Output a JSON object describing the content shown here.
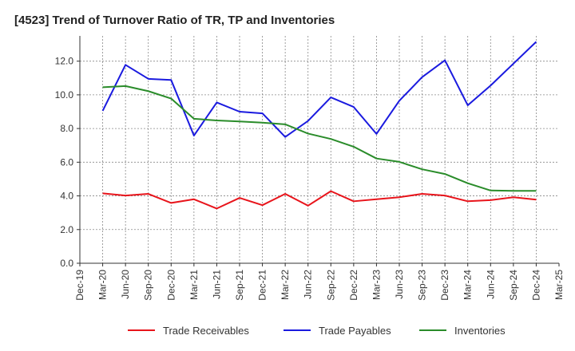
{
  "chart_data": {
    "type": "line",
    "title": "[4523]  Trend of Turnover Ratio of TR, TP and Inventories",
    "xlabel": "",
    "ylabel": "",
    "ylim": [
      0,
      13.5
    ],
    "yticks": [
      "0.0",
      "2.0",
      "4.0",
      "6.0",
      "8.0",
      "10.0",
      "12.0"
    ],
    "ytick_values": [
      0,
      2,
      4,
      6,
      8,
      10,
      12
    ],
    "x_tick_labels": [
      "Dec-19",
      "Mar-20",
      "Jun-20",
      "Sep-20",
      "Dec-20",
      "Mar-21",
      "Jun-21",
      "Sep-21",
      "Dec-21",
      "Mar-22",
      "Jun-22",
      "Sep-22",
      "Dec-22",
      "Mar-23",
      "Jun-23",
      "Sep-23",
      "Dec-23",
      "Mar-24",
      "Jun-24",
      "Sep-24",
      "Dec-24",
      "Mar-25"
    ],
    "categories": [
      "Mar-20",
      "Jun-20",
      "Sep-20",
      "Dec-20",
      "Mar-21",
      "Jun-21",
      "Sep-21",
      "Dec-21",
      "Mar-22",
      "Jun-22",
      "Sep-22",
      "Dec-22",
      "Mar-23",
      "Jun-23",
      "Sep-23",
      "Dec-23",
      "Mar-24",
      "Jun-24",
      "Sep-24",
      "Dec-24"
    ],
    "grid": true,
    "legend_position": "bottom",
    "series": [
      {
        "name": "Trade Receivables",
        "color": "#e8141b",
        "values": [
          4.15,
          4.02,
          4.12,
          3.58,
          3.8,
          3.25,
          3.88,
          3.45,
          4.12,
          3.42,
          4.28,
          3.68,
          3.8,
          3.92,
          4.12,
          4.02,
          3.68,
          3.75,
          3.92,
          3.78
        ]
      },
      {
        "name": "Trade Payables",
        "color": "#1a1adf",
        "values": [
          9.05,
          11.78,
          10.95,
          10.88,
          7.58,
          9.55,
          9.0,
          8.9,
          7.5,
          8.45,
          9.85,
          9.28,
          7.68,
          9.65,
          11.05,
          12.05,
          9.38,
          10.55,
          11.85,
          13.15
        ]
      },
      {
        "name": "Inventories",
        "color": "#2a8c2a",
        "values": [
          10.45,
          10.52,
          10.22,
          9.78,
          8.58,
          8.48,
          8.42,
          8.35,
          8.25,
          7.7,
          7.38,
          6.92,
          6.22,
          6.02,
          5.58,
          5.3,
          4.75,
          4.32,
          4.3,
          4.3
        ]
      }
    ]
  }
}
